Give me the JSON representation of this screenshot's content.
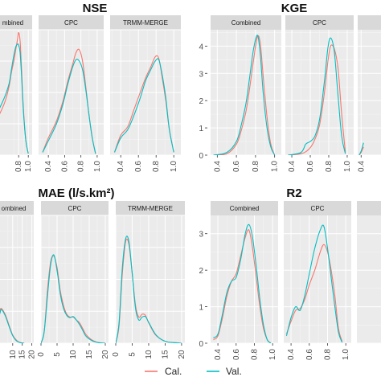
{
  "legend": {
    "position": "bottom",
    "items": [
      {
        "label": "Cal.",
        "color": "#F8766D"
      },
      {
        "label": "Val.",
        "color": "#00BFC4"
      }
    ]
  },
  "chart_data": [
    {
      "type": "line",
      "title": "NSE",
      "xlabel": "",
      "ylabel": "",
      "grid": true,
      "xlim": [
        0.28,
        1.08
      ],
      "ylim": [
        0,
        4.4
      ],
      "x_ticks": [],
      "y_ticks": [],
      "panel_x_ticks": [
        "0.4",
        "0.6",
        "0.8",
        "1.0"
      ],
      "panel_x_tick_values": [
        0.4,
        0.6,
        0.8,
        1.0
      ],
      "panels": [
        {
          "label": "mbined",
          "x_ticks": [
            "0.8",
            "1.0"
          ],
          "series": [
            {
              "name": "Cal.",
              "x": [
                0.28,
                0.5,
                0.6,
                0.65,
                0.7,
                0.74,
                0.78,
                0.8,
                0.83,
                0.86,
                0.9,
                0.95,
                1.0
              ],
              "y": [
                1.0,
                1.8,
                2.4,
                2.9,
                3.3,
                3.7,
                4.1,
                4.3,
                4.0,
                3.0,
                1.6,
                0.5,
                0.06
              ]
            },
            {
              "name": "Val.",
              "x": [
                0.28,
                0.5,
                0.6,
                0.65,
                0.7,
                0.74,
                0.78,
                0.8,
                0.83,
                0.86,
                0.9,
                0.95,
                1.0
              ],
              "y": [
                1.2,
                2.0,
                2.5,
                3.0,
                3.5,
                3.8,
                3.9,
                3.85,
                3.6,
                2.8,
                1.5,
                0.5,
                0.05
              ]
            }
          ]
        },
        {
          "label": "CPC",
          "x_ticks": [
            "0.4",
            "0.6",
            "0.8",
            "1.0"
          ],
          "series": [
            {
              "name": "Cal.",
              "x": [
                0.33,
                0.4,
                0.5,
                0.58,
                0.64,
                0.7,
                0.74,
                0.78,
                0.82,
                0.86,
                0.9,
                0.94,
                0.98
              ],
              "y": [
                0.1,
                0.6,
                1.2,
                1.9,
                2.6,
                3.2,
                3.6,
                3.7,
                3.3,
                2.4,
                1.4,
                0.6,
                0.05
              ]
            },
            {
              "name": "Val.",
              "x": [
                0.33,
                0.4,
                0.5,
                0.58,
                0.64,
                0.7,
                0.74,
                0.78,
                0.82,
                0.86,
                0.9,
                0.94,
                0.98
              ],
              "y": [
                0.1,
                0.5,
                1.1,
                1.8,
                2.5,
                3.1,
                3.35,
                3.3,
                3.0,
                2.3,
                1.4,
                0.6,
                0.05
              ]
            }
          ]
        },
        {
          "label": "TRMM-MERGE",
          "x_ticks": [
            "0.4",
            "0.6",
            "0.8",
            "1.0"
          ],
          "series": [
            {
              "name": "Cal.",
              "x": [
                0.33,
                0.4,
                0.48,
                0.55,
                0.62,
                0.68,
                0.74,
                0.79,
                0.83,
                0.87,
                0.91,
                0.95,
                1.0
              ],
              "y": [
                0.1,
                0.7,
                1.0,
                1.6,
                2.2,
                2.7,
                3.1,
                3.45,
                3.4,
                2.7,
                1.9,
                0.9,
                0.1
              ]
            },
            {
              "name": "Val.",
              "x": [
                0.33,
                0.4,
                0.48,
                0.55,
                0.62,
                0.68,
                0.74,
                0.79,
                0.83,
                0.87,
                0.91,
                0.95,
                1.0
              ],
              "y": [
                0.1,
                0.6,
                0.9,
                1.4,
                2.0,
                2.6,
                3.0,
                3.3,
                3.35,
                2.8,
                2.0,
                0.9,
                0.1
              ]
            }
          ]
        }
      ]
    },
    {
      "type": "line",
      "title": "KGE",
      "xlabel": "",
      "ylabel": "",
      "grid": true,
      "xlim": [
        0.33,
        1.07
      ],
      "ylim": [
        0,
        4.6
      ],
      "x_ticks": [],
      "y_ticks": [
        "0",
        "1",
        "2",
        "3",
        "4"
      ],
      "y_tick_values": [
        0,
        1,
        2,
        3,
        4
      ],
      "panels": [
        {
          "label": "Combined",
          "x_ticks": [
            "0.4",
            "0.6",
            "0.8",
            "1.0"
          ],
          "series": [
            {
              "name": "Cal.",
              "x": [
                0.36,
                0.5,
                0.6,
                0.65,
                0.7,
                0.74,
                0.78,
                0.82,
                0.85,
                0.88,
                0.92,
                0.96,
                1.0
              ],
              "y": [
                0,
                0.05,
                0.4,
                0.9,
                1.6,
                2.5,
                3.5,
                4.35,
                4.1,
                2.9,
                1.4,
                0.4,
                0
              ]
            },
            {
              "name": "Val.",
              "x": [
                0.36,
                0.5,
                0.6,
                0.65,
                0.7,
                0.74,
                0.78,
                0.82,
                0.85,
                0.88,
                0.92,
                0.96,
                1.0
              ],
              "y": [
                0,
                0.1,
                0.5,
                1.1,
                1.9,
                2.9,
                3.9,
                4.4,
                3.7,
                2.3,
                1.0,
                0.3,
                0
              ]
            }
          ]
        },
        {
          "label": "CPC",
          "x_ticks": [
            "0.4",
            "0.6",
            "0.8",
            "1.0"
          ],
          "series": [
            {
              "name": "Cal.",
              "x": [
                0.36,
                0.5,
                0.58,
                0.64,
                0.7,
                0.75,
                0.79,
                0.82,
                0.86,
                0.9,
                0.94,
                0.98
              ],
              "y": [
                0,
                0.05,
                0.2,
                0.5,
                1.1,
                2.2,
                3.4,
                4.0,
                3.9,
                3.2,
                1.5,
                0.1
              ]
            },
            {
              "name": "Val.",
              "x": [
                0.36,
                0.5,
                0.55,
                0.6,
                0.65,
                0.7,
                0.75,
                0.79,
                0.82,
                0.86,
                0.9,
                0.94,
                0.98
              ],
              "y": [
                0,
                0.1,
                0.4,
                0.5,
                0.7,
                1.3,
                2.6,
                3.9,
                4.3,
                3.8,
                2.2,
                0.7,
                0.05
              ]
            }
          ]
        },
        {
          "label": "",
          "x_ticks": [
            "0.4"
          ],
          "series": [
            {
              "name": "Cal.",
              "x": [
                0.36,
                0.4,
                0.45
              ],
              "y": [
                0,
                0.1,
                0.3
              ]
            },
            {
              "name": "Val.",
              "x": [
                0.36,
                0.4,
                0.45
              ],
              "y": [
                0,
                0.15,
                0.45
              ]
            }
          ]
        }
      ]
    },
    {
      "type": "line",
      "title": "MAE (l/s.km²)",
      "xlabel": "",
      "ylabel": "",
      "grid": true,
      "xlim": [
        0,
        21
      ],
      "ylim": [
        0,
        0.22
      ],
      "x_ticks": [],
      "y_ticks": [],
      "panels": [
        {
          "label": "ombined",
          "x_ticks": [
            "10",
            "15",
            "20"
          ],
          "series": [
            {
              "name": "Cal.",
              "x": [
                0,
                3,
                4,
                6,
                8,
                10,
                12,
                14,
                16
              ],
              "y": [
                0.06,
                0.055,
                0.06,
                0.05,
                0.032,
                0.014,
                0.005,
                0.001,
                0
              ]
            },
            {
              "name": "Val.",
              "x": [
                0,
                3,
                4,
                6,
                8,
                10,
                12,
                14,
                16
              ],
              "y": [
                0.055,
                0.05,
                0.058,
                0.048,
                0.03,
                0.013,
                0.004,
                0.001,
                0
              ]
            }
          ]
        },
        {
          "label": "CPC",
          "x_ticks": [
            "0",
            "5",
            "10",
            "15",
            "20"
          ],
          "series": [
            {
              "name": "Cal.",
              "x": [
                0,
                1,
                2,
                3,
                4,
                5,
                6,
                7,
                8,
                9,
                10,
                11,
                12,
                13,
                14,
                16,
                18,
                20
              ],
              "y": [
                0,
                0.02,
                0.09,
                0.14,
                0.15,
                0.13,
                0.09,
                0.065,
                0.05,
                0.045,
                0.045,
                0.04,
                0.035,
                0.025,
                0.015,
                0.005,
                0.001,
                0
              ]
            },
            {
              "name": "Val.",
              "x": [
                0,
                1,
                2,
                3,
                4,
                5,
                6,
                7,
                8,
                9,
                10,
                11,
                12,
                13,
                14,
                16,
                18,
                20
              ],
              "y": [
                0,
                0.02,
                0.08,
                0.135,
                0.152,
                0.125,
                0.085,
                0.06,
                0.048,
                0.044,
                0.046,
                0.04,
                0.032,
                0.022,
                0.012,
                0.004,
                0.001,
                0
              ]
            }
          ]
        },
        {
          "label": "TRMM-MERGE",
          "x_ticks": [
            "0",
            "5",
            "10",
            "15",
            "20"
          ],
          "series": [
            {
              "name": "Cal.",
              "x": [
                0,
                1,
                2,
                3,
                4,
                5,
                6,
                7,
                8,
                9,
                10,
                12,
                14,
                16,
                18,
                20
              ],
              "y": [
                0,
                0.03,
                0.12,
                0.175,
                0.17,
                0.12,
                0.065,
                0.045,
                0.05,
                0.048,
                0.035,
                0.015,
                0.006,
                0.002,
                0.001,
                0
              ]
            },
            {
              "name": "Val.",
              "x": [
                0,
                1,
                2,
                3,
                4,
                5,
                6,
                7,
                8,
                9,
                10,
                12,
                14,
                16,
                18,
                20
              ],
              "y": [
                0,
                0.035,
                0.13,
                0.18,
                0.175,
                0.12,
                0.06,
                0.04,
                0.045,
                0.046,
                0.036,
                0.016,
                0.006,
                0.002,
                0.001,
                0
              ]
            }
          ]
        }
      ]
    },
    {
      "type": "line",
      "title": "R2",
      "xlabel": "",
      "ylabel": "",
      "grid": true,
      "xlim": [
        0.32,
        1.06
      ],
      "ylim": [
        0,
        3.5
      ],
      "x_ticks": [],
      "y_ticks": [
        "0",
        "1",
        "2",
        "3"
      ],
      "y_tick_values": [
        0,
        1,
        2,
        3
      ],
      "panels": [
        {
          "label": "Combined",
          "x_ticks": [
            "0.4",
            "0.6",
            "0.8",
            "1.0"
          ],
          "series": [
            {
              "name": "Cal.",
              "x": [
                0.35,
                0.4,
                0.45,
                0.5,
                0.55,
                0.6,
                0.65,
                0.7,
                0.74,
                0.78,
                0.82,
                0.86,
                0.9,
                0.94,
                0.98
              ],
              "y": [
                0.1,
                0.2,
                0.7,
                1.3,
                1.7,
                1.9,
                2.4,
                2.9,
                3.1,
                2.6,
                1.8,
                1.0,
                0.4,
                0.1,
                0
              ]
            },
            {
              "name": "Val.",
              "x": [
                0.35,
                0.4,
                0.45,
                0.5,
                0.55,
                0.6,
                0.65,
                0.7,
                0.74,
                0.78,
                0.82,
                0.86,
                0.9,
                0.94,
                0.98
              ],
              "y": [
                0.15,
                0.25,
                0.8,
                1.4,
                1.7,
                1.8,
                2.3,
                3.0,
                3.25,
                2.9,
                2.1,
                1.2,
                0.5,
                0.1,
                0
              ]
            }
          ]
        },
        {
          "label": "CPC",
          "x_ticks": [
            "0.4",
            "0.6",
            "0.8",
            "1.0"
          ],
          "series": [
            {
              "name": "Cal.",
              "x": [
                0.35,
                0.4,
                0.45,
                0.5,
                0.55,
                0.6,
                0.66,
                0.72,
                0.76,
                0.8,
                0.84,
                0.88,
                0.92,
                0.96
              ],
              "y": [
                0.25,
                0.6,
                0.9,
                0.95,
                1.2,
                1.6,
                2.0,
                2.5,
                2.7,
                2.5,
                2.0,
                1.3,
                0.4,
                0.05
              ]
            },
            {
              "name": "Val.",
              "x": [
                0.35,
                0.4,
                0.45,
                0.5,
                0.55,
                0.6,
                0.66,
                0.72,
                0.76,
                0.8,
                0.84,
                0.88,
                0.92,
                0.96
              ],
              "y": [
                0.2,
                0.7,
                1.0,
                0.9,
                1.3,
                1.9,
                2.6,
                3.1,
                3.2,
                2.6,
                1.8,
                1.0,
                0.3,
                0.02
              ]
            }
          ]
        },
        {
          "label": "",
          "x_ticks": [],
          "series": []
        }
      ]
    }
  ]
}
